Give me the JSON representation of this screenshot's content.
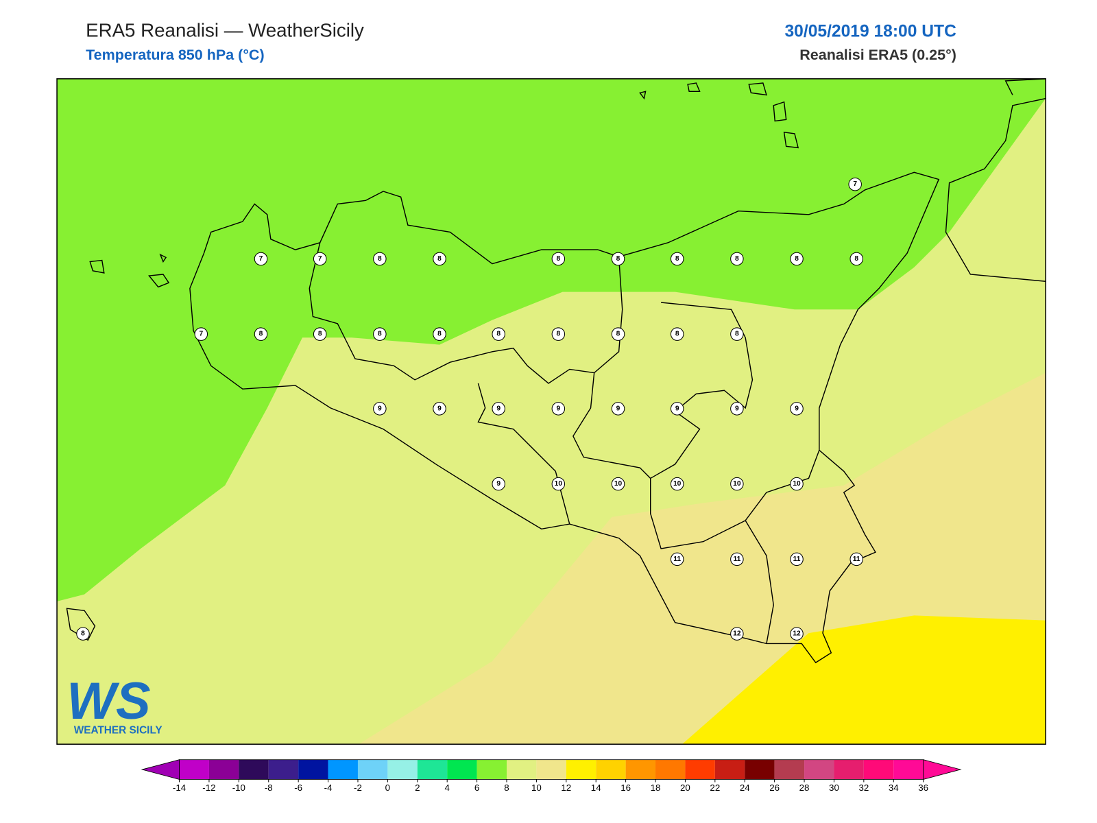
{
  "header": {
    "title": "ERA5 Reanalisi — WeatherSicily",
    "subtitle": "Temperatura 850 hPa (°C)",
    "datetime": "30/05/2019 18:00 UTC",
    "model": "Reanalisi ERA5 (0.25°)"
  },
  "logo": {
    "mark": "WS",
    "text": "WEATHER SICILY"
  },
  "points": [
    7,
    7,
    7,
    8,
    8,
    8,
    8,
    8,
    8,
    8,
    7,
    8,
    8,
    8,
    8,
    8,
    8,
    8,
    8,
    8,
    8,
    9,
    9,
    9,
    9,
    9,
    9,
    9,
    9,
    9,
    10,
    10,
    10,
    10,
    10,
    11,
    11,
    11,
    11,
    12,
    12,
    8
  ],
  "colorbar": {
    "ticks": [
      -14,
      -12,
      -10,
      -8,
      -6,
      -4,
      -2,
      0,
      2,
      4,
      6,
      8,
      10,
      12,
      14,
      16,
      18,
      20,
      22,
      24,
      26,
      28,
      30,
      32,
      34,
      36
    ],
    "colors": [
      "#c000c8",
      "#8b0096",
      "#2e0a5a",
      "#3c1e8c",
      "#0014a0",
      "#0096ff",
      "#6ed2f8",
      "#96f0e6",
      "#1ee696",
      "#00e650",
      "#87f032",
      "#e1f082",
      "#f0e68c",
      "#fff000",
      "#ffd200",
      "#ff9600",
      "#ff7800",
      "#ff3c00",
      "#c81e14",
      "#780000",
      "#b43c50",
      "#d24682",
      "#e61e6e",
      "#ff0a78",
      "#ff0a96"
    ],
    "under_color": "#a000b4",
    "over_color": "#ff0a96"
  }
}
